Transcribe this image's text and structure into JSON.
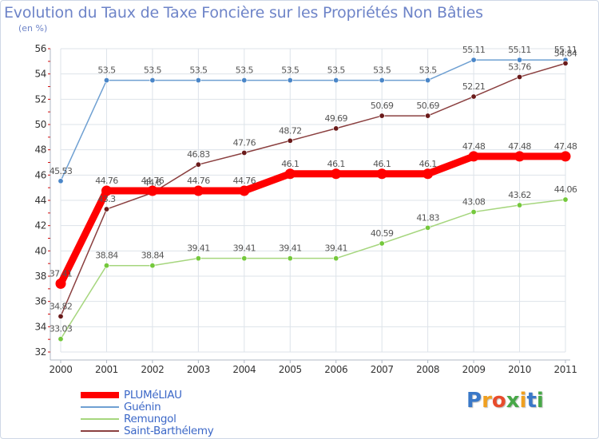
{
  "title": "Evolution du Taux de Taxe Foncière sur les Propriétés Non Bâties",
  "unit_label": "(en %)",
  "brand": {
    "text": "Proxiti",
    "letter_colors": [
      "#3a78c8",
      "#f0a020",
      "#e84c2c",
      "#48a848",
      "#f0a020",
      "#3a78c8",
      "#48a848"
    ]
  },
  "chart_data": {
    "type": "line",
    "x": [
      "2000",
      "2001",
      "2002",
      "2003",
      "2004",
      "2005",
      "2006",
      "2007",
      "2008",
      "2009",
      "2010",
      "2011"
    ],
    "ylim": [
      32,
      56
    ],
    "yticks": [
      "32",
      "34",
      "36",
      "38",
      "40",
      "42",
      "44",
      "46",
      "48",
      "50",
      "52",
      "54",
      "56"
    ],
    "grid": true,
    "legend_position": "bottom-left",
    "series": [
      {
        "name": "PLUMéLIAU",
        "color": "#ff0000",
        "marker_color": "#ff0000",
        "emphasis": "thick",
        "values": [
          37.41,
          44.76,
          44.76,
          44.76,
          44.76,
          46.1,
          46.1,
          46.1,
          46.1,
          47.48,
          47.48,
          47.48
        ],
        "labels": [
          "37.41",
          "44.76",
          "44.76",
          "44.76",
          "44.76",
          "46.1",
          "46.1",
          "46.1",
          "46.1",
          "47.48",
          "47.48",
          "47.48"
        ]
      },
      {
        "name": "Guénin",
        "color": "#6fa0d2",
        "marker_color": "#4a86c8",
        "emphasis": "thin",
        "values": [
          45.53,
          53.5,
          53.5,
          53.5,
          53.5,
          53.5,
          53.5,
          53.5,
          53.5,
          55.11,
          55.11,
          55.11
        ],
        "labels": [
          "45.53",
          "53.5",
          "53.5",
          "53.5",
          "53.5",
          "53.5",
          "53.5",
          "53.5",
          "53.5",
          "55.11",
          "55.11",
          "55.11"
        ]
      },
      {
        "name": "Remungol",
        "color": "#a6d67e",
        "marker_color": "#74c83c",
        "emphasis": "thin",
        "values": [
          33.03,
          38.84,
          38.84,
          39.41,
          39.41,
          39.41,
          39.41,
          40.59,
          41.83,
          43.08,
          43.62,
          44.06
        ],
        "labels": [
          "33.03",
          "38.84",
          "38.84",
          "39.41",
          "39.41",
          "39.41",
          "39.41",
          "40.59",
          "41.83",
          "43.08",
          "43.62",
          "44.06"
        ]
      },
      {
        "name": "Saint-Barthélemy",
        "color": "#8b4040",
        "marker_color": "#6a1a1a",
        "emphasis": "thin",
        "values": [
          34.82,
          43.3,
          44.6,
          46.83,
          47.76,
          48.72,
          49.69,
          50.69,
          50.69,
          52.21,
          53.76,
          54.84
        ],
        "labels": [
          "34.82",
          "43.3",
          "44.6",
          "46.83",
          "47.76",
          "48.72",
          "49.69",
          "50.69",
          "50.69",
          "52.21",
          "53.76",
          "54.84"
        ]
      }
    ]
  }
}
